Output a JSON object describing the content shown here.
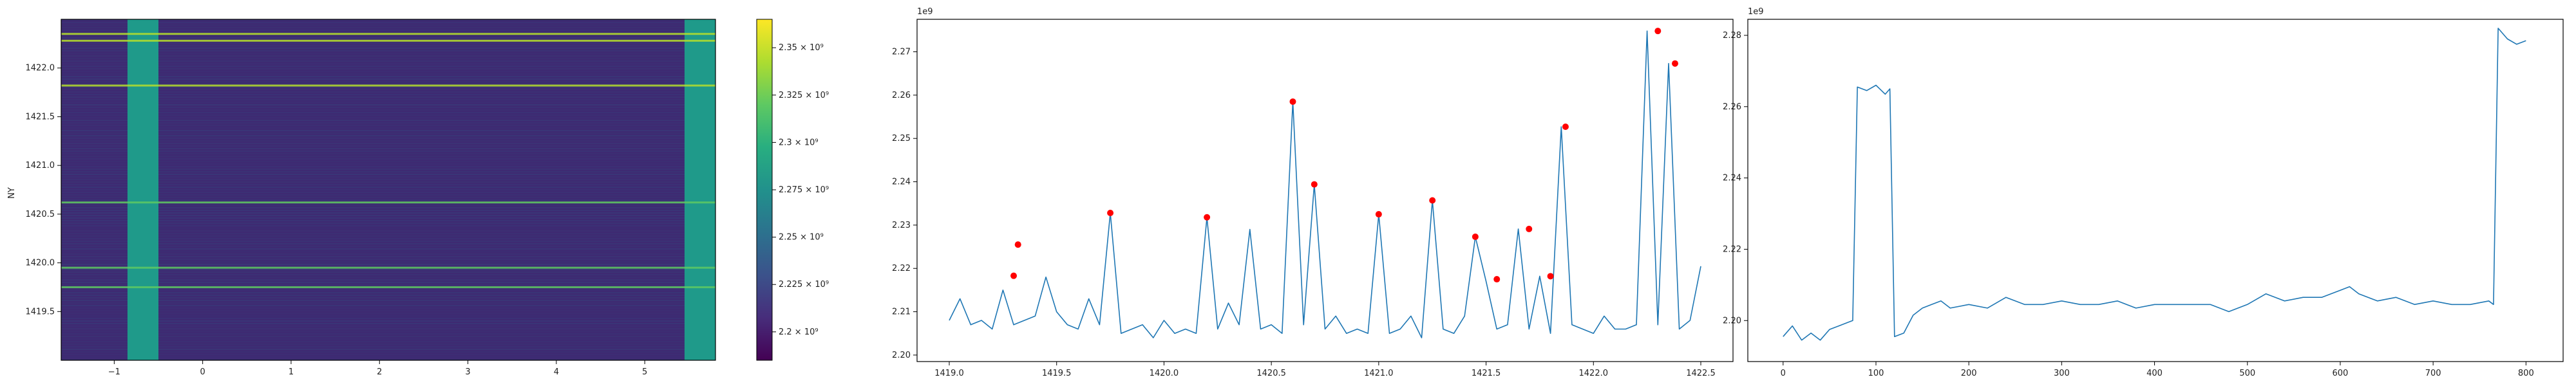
{
  "chart_data": [
    {
      "type": "heatmap",
      "ylabel": "NY",
      "xlim": [
        -1.6,
        5.8
      ],
      "ylim": [
        1419.0,
        1422.5
      ],
      "xticks": [
        -1,
        0,
        1,
        2,
        3,
        4,
        5
      ],
      "yticks": [
        1419.5,
        1420.0,
        1420.5,
        1421.0,
        1421.5,
        1422.0
      ],
      "bright_columns": [
        [
          -0.85,
          -0.5
        ],
        [
          5.45,
          5.8
        ]
      ],
      "bright_rows": [
        1422.35,
        1422.28,
        1421.82,
        1420.62,
        1419.95,
        1419.75
      ],
      "colorbar": {
        "ticks": [
          {
            "value": 2200000000,
            "label": "2.2 × 10⁹"
          },
          {
            "value": 2225000000,
            "label": "2.225 × 10⁹"
          },
          {
            "value": 2250000000,
            "label": "2.25 × 10⁹"
          },
          {
            "value": 2275000000,
            "label": "2.275 × 10⁹"
          },
          {
            "value": 2300000000,
            "label": "2.3 × 10⁹"
          },
          {
            "value": 2325000000,
            "label": "2.325 × 10⁹"
          },
          {
            "value": 2350000000,
            "label": "2.35 × 10⁹"
          }
        ],
        "range": [
          2185000000,
          2365000000
        ],
        "colormap": "viridis"
      }
    },
    {
      "type": "line",
      "offset_text": "1e9",
      "xlim": [
        1418.85,
        1422.65
      ],
      "ylim": [
        2.1985,
        2.2775
      ],
      "xticks": [
        1419.0,
        1419.5,
        1420.0,
        1420.5,
        1421.0,
        1421.5,
        1422.0,
        1422.5
      ],
      "xtick_labels": [
        "1419.0",
        "1419.5",
        "1420.0",
        "1420.5",
        "1421.0",
        "1421.5",
        "1422.0",
        "1422.5"
      ],
      "yticks": [
        2.2,
        2.21,
        2.22,
        2.23,
        2.24,
        2.25,
        2.26,
        2.27
      ],
      "ytick_labels": [
        "2.20",
        "2.21",
        "2.22",
        "2.23",
        "2.24",
        "2.25",
        "2.26",
        "2.27"
      ],
      "line_color": "#1f77b4",
      "marker_color": "#ff0000",
      "series": [
        {
          "x": [
            1419.0,
            1419.05,
            1419.1,
            1419.15,
            1419.2,
            1419.25,
            1419.3,
            1419.35,
            1419.4,
            1419.45,
            1419.5,
            1419.55,
            1419.6,
            1419.65,
            1419.7,
            1419.75,
            1419.8,
            1419.85,
            1419.9,
            1419.95,
            1420.0,
            1420.05,
            1420.1,
            1420.15,
            1420.2,
            1420.25,
            1420.3,
            1420.35,
            1420.4,
            1420.45,
            1420.5,
            1420.55,
            1420.6,
            1420.65,
            1420.7,
            1420.75,
            1420.8,
            1420.85,
            1420.9,
            1420.95,
            1421.0,
            1421.05,
            1421.1,
            1421.15,
            1421.2,
            1421.25,
            1421.3,
            1421.35,
            1421.4,
            1421.45,
            1421.5,
            1421.55,
            1421.6,
            1421.65,
            1421.7,
            1421.75,
            1421.8,
            1421.85,
            1421.9,
            1421.95,
            1422.0,
            1422.05,
            1422.1,
            1422.15,
            1422.2,
            1422.25,
            1422.3,
            1422.35,
            1422.4,
            1422.45,
            1422.5
          ],
          "y": [
            2.208,
            2.213,
            2.207,
            2.208,
            2.206,
            2.215,
            2.207,
            2.208,
            2.209,
            2.218,
            2.21,
            2.207,
            2.206,
            2.213,
            2.207,
            2.2328,
            2.205,
            2.206,
            2.207,
            2.204,
            2.208,
            2.205,
            2.206,
            2.205,
            2.2318,
            2.206,
            2.212,
            2.207,
            2.229,
            2.206,
            2.207,
            2.205,
            2.2585,
            2.207,
            2.2394,
            2.206,
            2.209,
            2.205,
            2.206,
            2.205,
            2.2325,
            2.205,
            2.206,
            2.209,
            2.204,
            2.2357,
            2.206,
            2.205,
            2.209,
            2.2273,
            2.217,
            2.206,
            2.207,
            2.2291,
            2.206,
            2.2182,
            2.205,
            2.2527,
            2.207,
            2.206,
            2.205,
            2.209,
            2.206,
            2.206,
            2.207,
            2.2748,
            2.207,
            2.2673,
            2.206,
            2.208,
            2.2205
          ]
        }
      ],
      "peaks": [
        {
          "x": 1419.3,
          "y": 2.2183
        },
        {
          "x": 1419.32,
          "y": 2.2255
        },
        {
          "x": 1419.75,
          "y": 2.2328
        },
        {
          "x": 1420.2,
          "y": 2.2318
        },
        {
          "x": 1420.6,
          "y": 2.2585
        },
        {
          "x": 1420.7,
          "y": 2.2394
        },
        {
          "x": 1421.0,
          "y": 2.2325
        },
        {
          "x": 1421.25,
          "y": 2.2357
        },
        {
          "x": 1421.45,
          "y": 2.2273
        },
        {
          "x": 1421.55,
          "y": 2.2175
        },
        {
          "x": 1421.7,
          "y": 2.2291
        },
        {
          "x": 1421.8,
          "y": 2.2182
        },
        {
          "x": 1421.87,
          "y": 2.2527
        },
        {
          "x": 1422.3,
          "y": 2.2748
        },
        {
          "x": 1422.38,
          "y": 2.2673
        }
      ]
    },
    {
      "type": "line",
      "offset_text": "1e9",
      "xlim": [
        -38,
        840
      ],
      "ylim": [
        2.1885,
        2.2845
      ],
      "xticks": [
        0,
        100,
        200,
        300,
        400,
        500,
        600,
        700,
        800
      ],
      "xtick_labels": [
        "0",
        "100",
        "200",
        "300",
        "400",
        "500",
        "600",
        "700",
        "800"
      ],
      "yticks": [
        2.2,
        2.22,
        2.24,
        2.26,
        2.28
      ],
      "ytick_labels": [
        "2.20",
        "2.22",
        "2.24",
        "2.26",
        "2.28"
      ],
      "line_color": "#1f77b4",
      "series": [
        {
          "x": [
            0,
            10,
            20,
            30,
            40,
            50,
            60,
            70,
            75,
            80,
            90,
            100,
            110,
            115,
            120,
            130,
            140,
            150,
            160,
            170,
            180,
            200,
            220,
            240,
            260,
            280,
            300,
            320,
            340,
            360,
            380,
            400,
            420,
            440,
            460,
            480,
            500,
            520,
            540,
            560,
            580,
            600,
            610,
            620,
            640,
            660,
            680,
            700,
            720,
            740,
            760,
            765,
            770,
            780,
            790,
            800
          ],
          "y": [
            2.1955,
            2.1985,
            2.1945,
            2.1965,
            2.1945,
            2.1975,
            2.1985,
            2.1995,
            2.2,
            2.2655,
            2.2645,
            2.266,
            2.2635,
            2.265,
            2.1955,
            2.1965,
            2.2015,
            2.2035,
            2.2045,
            2.2055,
            2.2035,
            2.2045,
            2.2035,
            2.2065,
            2.2045,
            2.2045,
            2.2055,
            2.2045,
            2.2045,
            2.2055,
            2.2035,
            2.2045,
            2.2045,
            2.2045,
            2.2045,
            2.2025,
            2.2045,
            2.2075,
            2.2055,
            2.2065,
            2.2065,
            2.2085,
            2.2095,
            2.2075,
            2.2055,
            2.2065,
            2.2045,
            2.2055,
            2.2045,
            2.2045,
            2.2055,
            2.2045,
            2.282,
            2.279,
            2.2775,
            2.2785
          ]
        }
      ]
    }
  ]
}
